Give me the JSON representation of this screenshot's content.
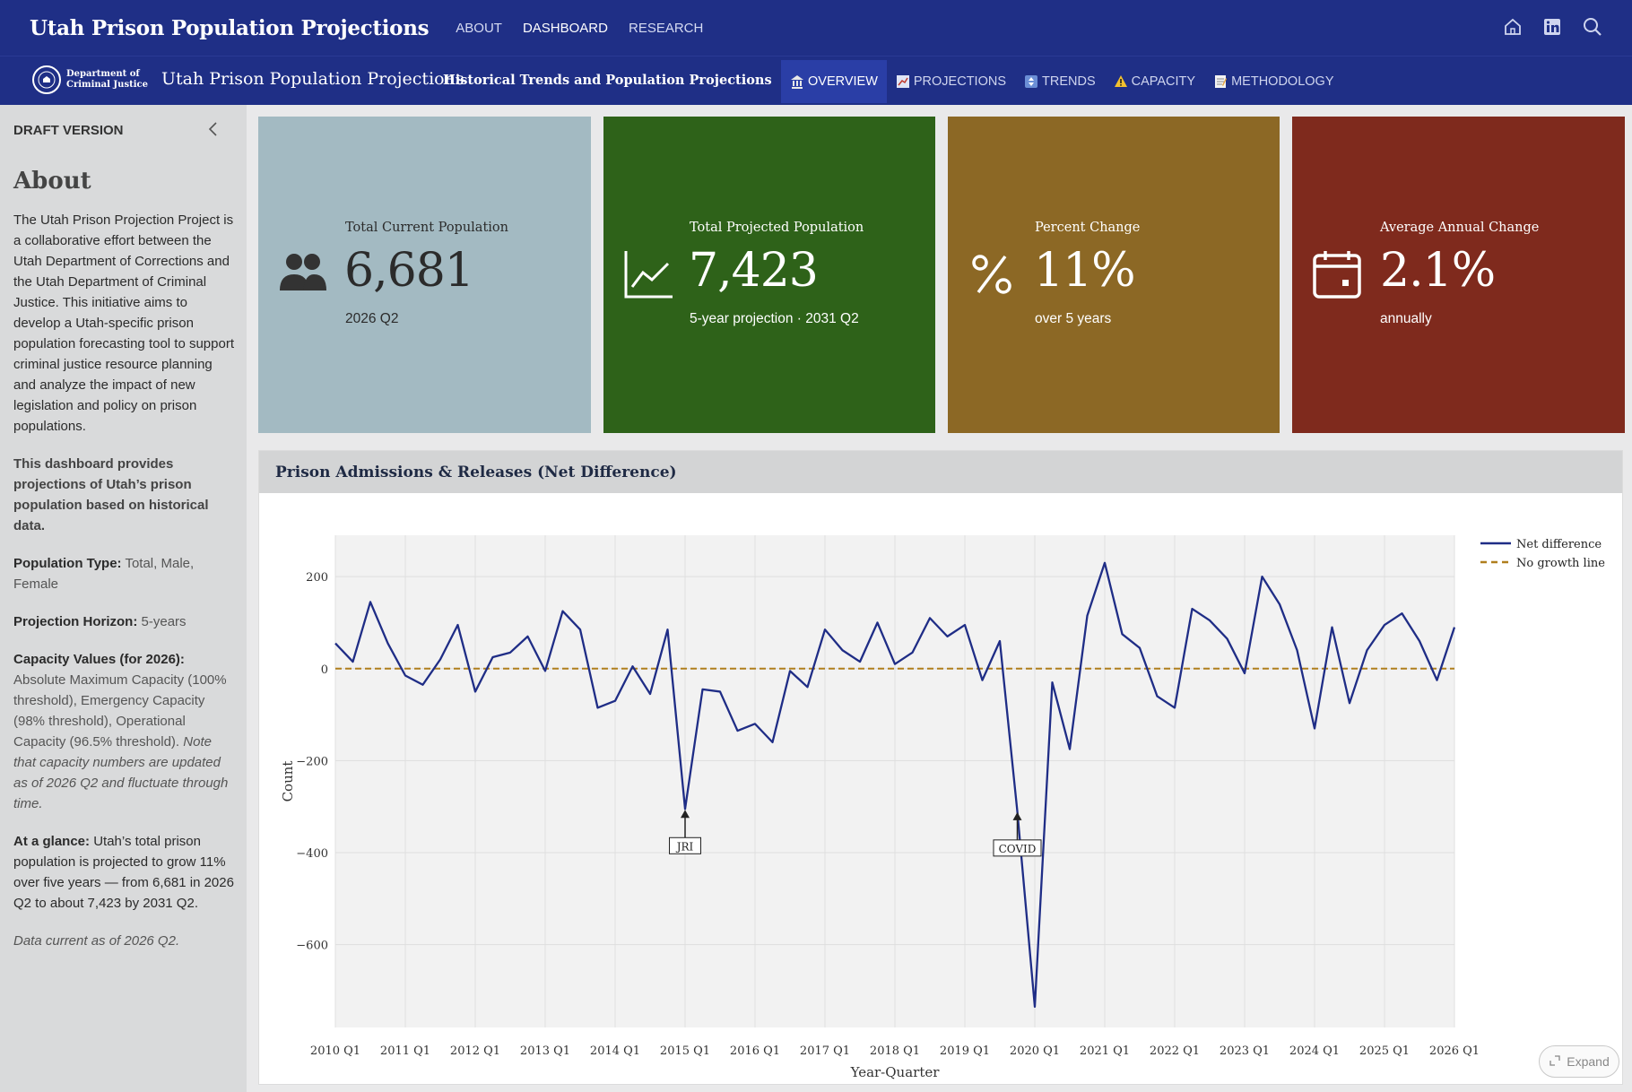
{
  "app": {
    "title": "Utah Prison Population Projections",
    "nav": [
      {
        "label": "ABOUT",
        "active": false
      },
      {
        "label": "DASHBOARD",
        "active": true
      },
      {
        "label": "RESEARCH",
        "active": false
      }
    ],
    "icons": [
      "home-icon",
      "linkedin-icon",
      "search-icon"
    ]
  },
  "subheader": {
    "dept_line1": "Department of",
    "dept_line2": "Criminal Justice",
    "title": "Utah Prison Population Projections",
    "subtitle": "Historical Trends and Population Projections",
    "tabs": [
      {
        "label": "OVERVIEW",
        "icon": "building-icon",
        "active": true
      },
      {
        "label": "PROJECTIONS",
        "icon": "chart-icon",
        "active": false
      },
      {
        "label": "TRENDS",
        "icon": "trend-icon",
        "active": false
      },
      {
        "label": "CAPACITY",
        "icon": "warning-icon",
        "active": false
      },
      {
        "label": "METHODOLOGY",
        "icon": "memo-icon",
        "active": false
      }
    ]
  },
  "sidebar": {
    "draft": "DRAFT VERSION",
    "heading": "About",
    "intro": "The Utah Prison Projection Project is a collaborative effort between the Utah Department of Corrections and the Utah Department of Criminal Justice. This initiative aims to develop a Utah-specific prison population forecasting tool to support criminal justice resource planning and analyze the impact of new legislation and policy on prison populations.",
    "dashboard_note": "This dashboard provides projections of Utah’s prison population based on historical data.",
    "pop_type_label": "Population Type:",
    "pop_type_value": " Total, Male, Female",
    "horizon_label": "Projection Horizon:",
    "horizon_value": " 5-years",
    "capacity_label": "Capacity Values (for 2026):",
    "capacity_value": " Absolute Maximum Capacity (100% threshold), Emergency Capacity (98% threshold), Operational Capacity (96.5% threshold).",
    "capacity_note": "Note that capacity numbers are updated as of 2026 Q2 and fluctuate through time.",
    "glance_label": "At a glance:",
    "glance_value": " Utah’s total prison population is projected to grow 11% over five years — from 6,681 in 2026 Q2 to about 7,423 by 2031 Q2.",
    "data_current": "Data current as of 2026 Q2."
  },
  "cards": [
    {
      "label": "Total Current Population",
      "value": "6,681",
      "sub": "2026 Q2",
      "color": "#a3bac2",
      "icon": "people-icon"
    },
    {
      "label": "Total Projected Population",
      "value": "7,423",
      "sub": "5-year projection · 2031 Q2",
      "color": "#2e6219",
      "icon": "line-chart-icon"
    },
    {
      "label": "Percent Change",
      "value": "11%",
      "sub": "over 5 years",
      "color": "#8c6825",
      "icon": "percent-icon"
    },
    {
      "label": "Average Annual Change",
      "value": "2.1%",
      "sub": "annually",
      "color": "#7f2a1d",
      "icon": "calendar-icon"
    }
  ],
  "panel": {
    "title": "Prison Admissions & Releases (Net Difference)",
    "expand_label": "Expand"
  },
  "chart_data": {
    "type": "line",
    "xlabel": "Year-Quarter",
    "ylabel": "Count",
    "ylim": [
      -780,
      290
    ],
    "yticks": [
      200,
      0,
      -200,
      -400,
      -600
    ],
    "xtick_labels": [
      "2010 Q1",
      "2011 Q1",
      "2012 Q1",
      "2013 Q1",
      "2014 Q1",
      "2015 Q1",
      "2016 Q1",
      "2017 Q1",
      "2018 Q1",
      "2019 Q1",
      "2020 Q1",
      "2021 Q1",
      "2022 Q1",
      "2023 Q1",
      "2024 Q1",
      "2025 Q1",
      "2026 Q1"
    ],
    "grid": true,
    "legend_position": "top-right",
    "series": [
      {
        "name": "Net difference",
        "color": "#1f2d86",
        "values": [
          55,
          15,
          145,
          55,
          -15,
          -35,
          20,
          95,
          -50,
          25,
          35,
          70,
          -5,
          125,
          85,
          -85,
          -70,
          5,
          -55,
          85,
          -305,
          -45,
          -50,
          -135,
          -120,
          -160,
          -5,
          -40,
          85,
          40,
          15,
          100,
          10,
          35,
          110,
          70,
          95,
          -25,
          60,
          -310,
          -735,
          -30,
          -175,
          115,
          230,
          75,
          45,
          -60,
          -85,
          130,
          105,
          65,
          -10,
          200,
          140,
          40,
          -130,
          90,
          -75,
          40,
          95,
          120,
          60,
          -25,
          90
        ]
      },
      {
        "name": "No growth line",
        "color": "#b07f1d",
        "dash": true,
        "values": [
          0
        ]
      }
    ],
    "annotations": [
      {
        "text": "JRI",
        "x_index": 20,
        "y": -305
      },
      {
        "text": "COVID",
        "x_index": 39,
        "y": -310
      }
    ]
  }
}
